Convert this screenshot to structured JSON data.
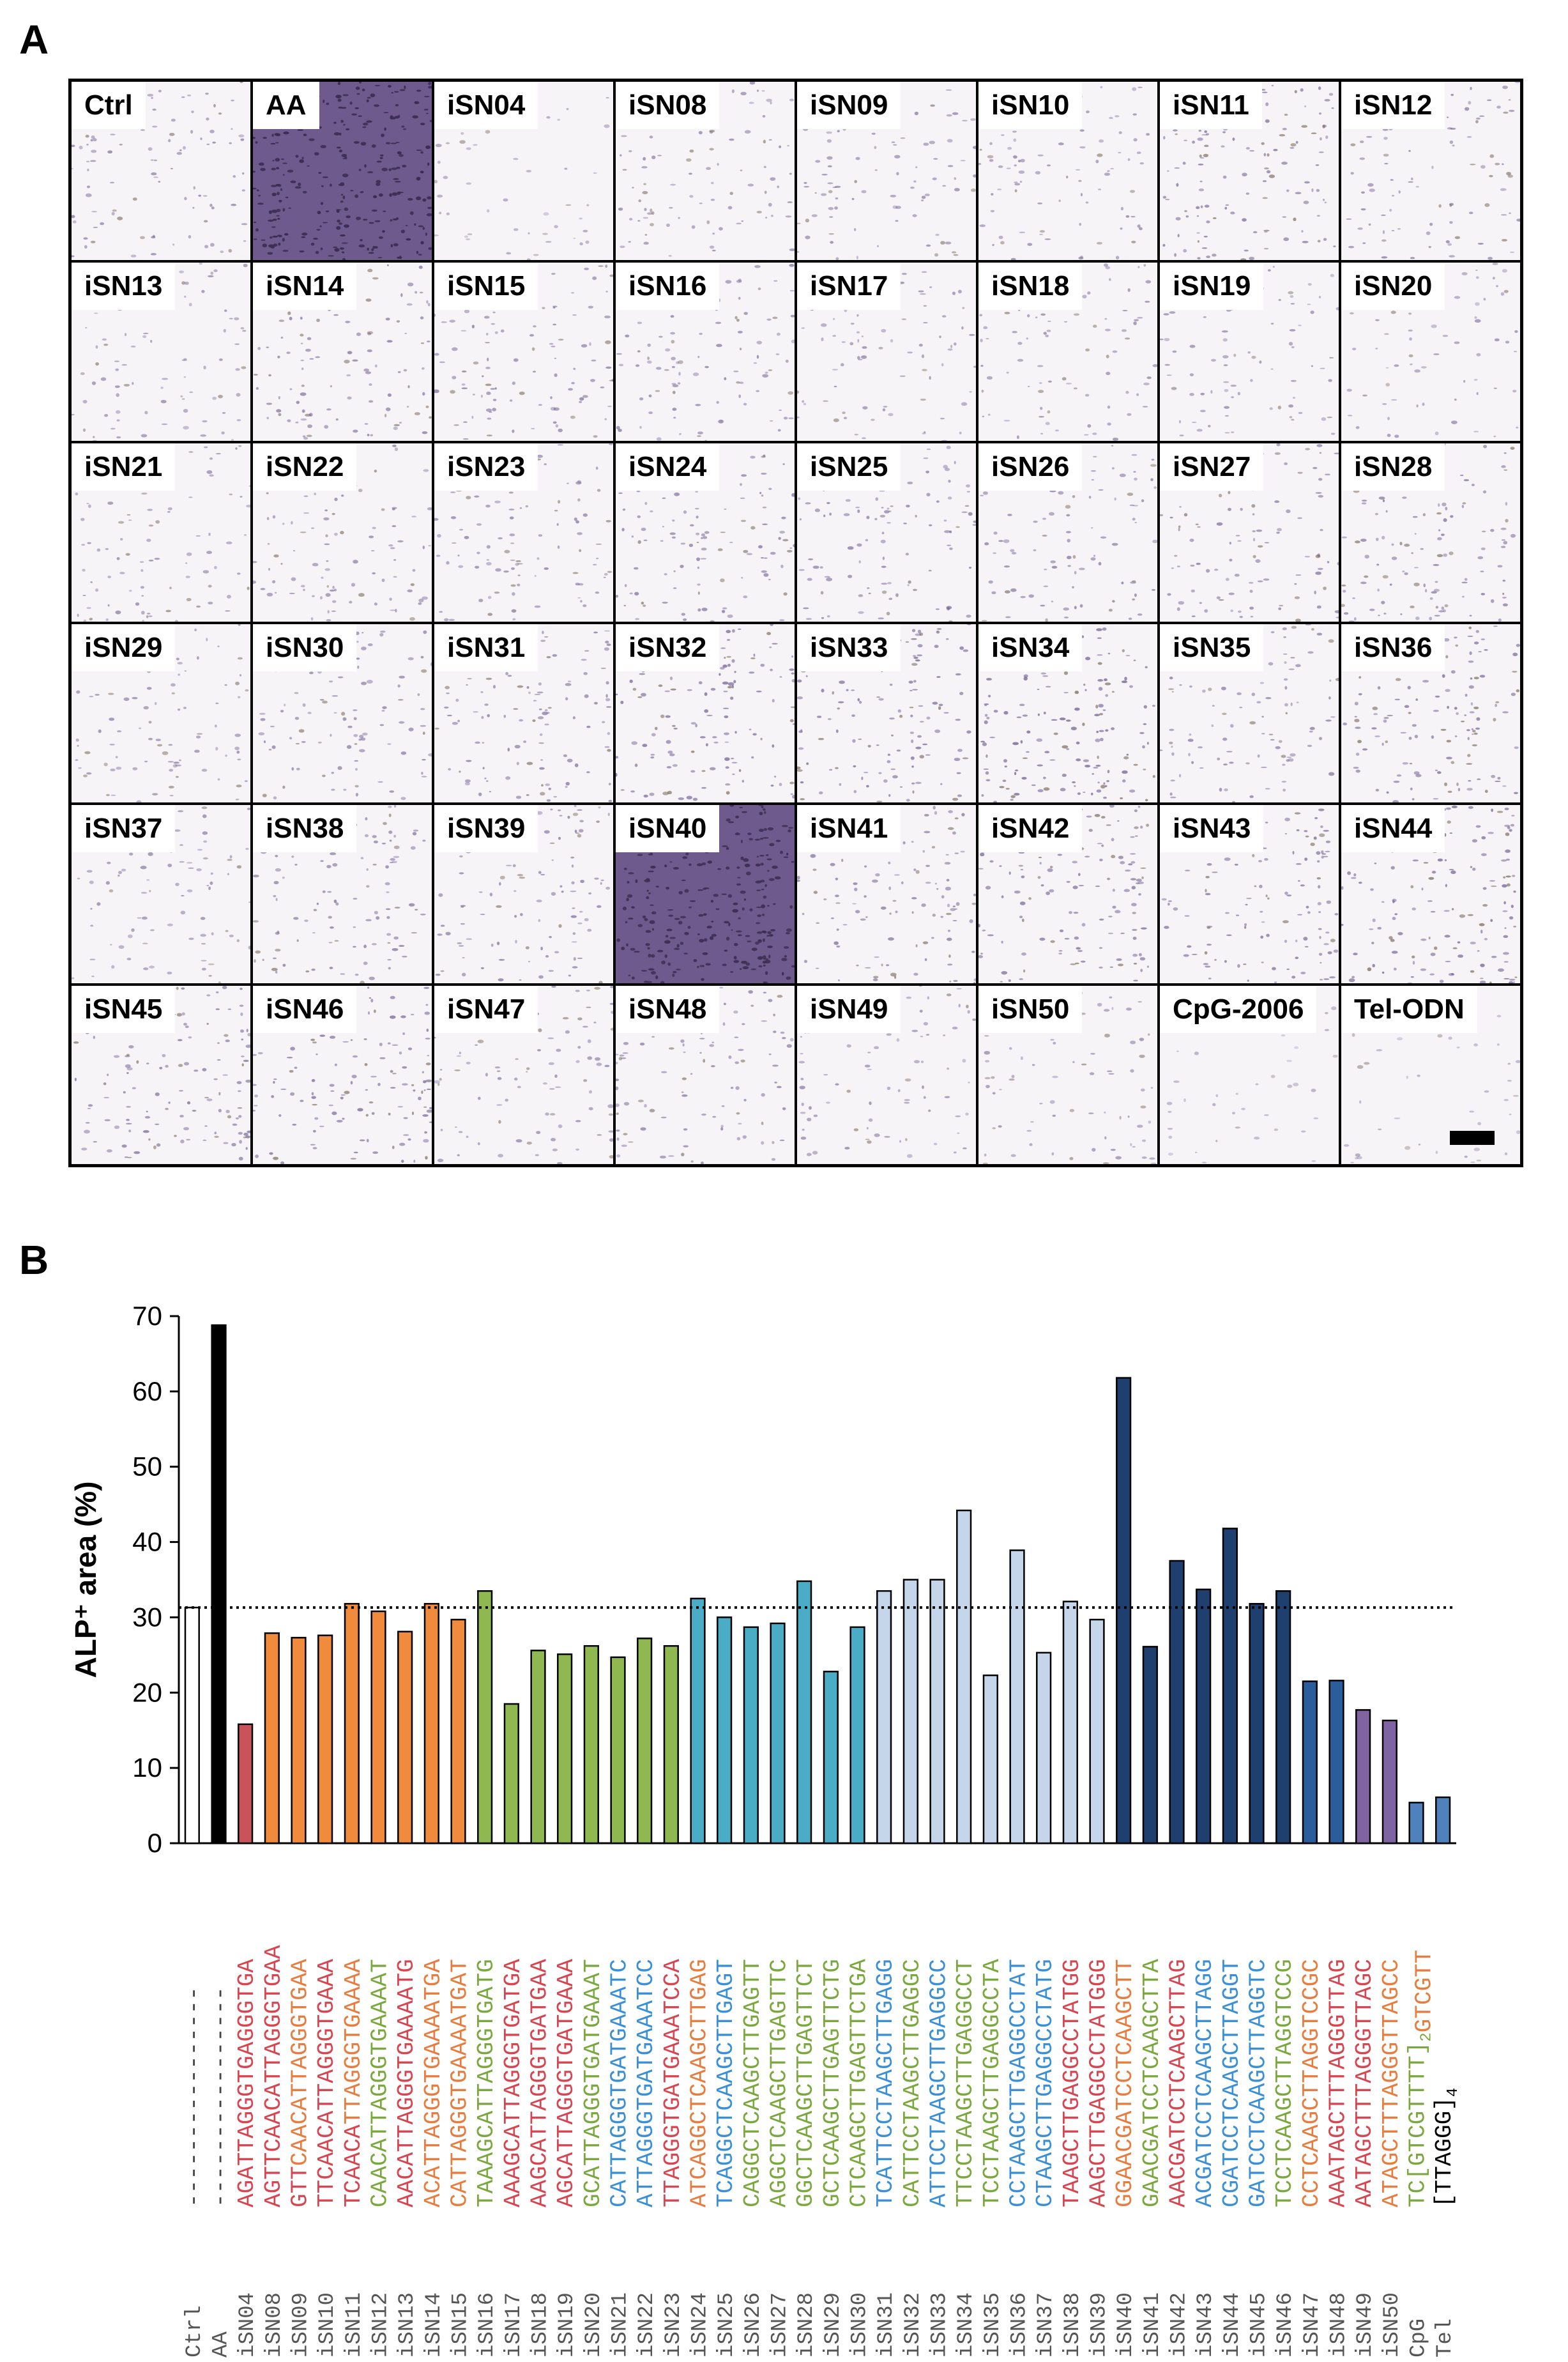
{
  "panel_a": {
    "letter": "A",
    "tiles": [
      {
        "label": "Ctrl",
        "stain": 0.25
      },
      {
        "label": "AA",
        "stain": 0.95
      },
      {
        "label": "iSN04",
        "stain": 0.05
      },
      {
        "label": "iSN08",
        "stain": 0.22
      },
      {
        "label": "iSN09",
        "stain": 0.22
      },
      {
        "label": "iSN10",
        "stain": 0.22
      },
      {
        "label": "iSN11",
        "stain": 0.35
      },
      {
        "label": "iSN12",
        "stain": 0.25
      },
      {
        "label": "iSN13",
        "stain": 0.2
      },
      {
        "label": "iSN14",
        "stain": 0.28
      },
      {
        "label": "iSN15",
        "stain": 0.28
      },
      {
        "label": "iSN16",
        "stain": 0.25
      },
      {
        "label": "iSN17",
        "stain": 0.18
      },
      {
        "label": "iSN18",
        "stain": 0.2
      },
      {
        "label": "iSN19",
        "stain": 0.2
      },
      {
        "label": "iSN20",
        "stain": 0.15
      },
      {
        "label": "iSN21",
        "stain": 0.2
      },
      {
        "label": "iSN22",
        "stain": 0.25
      },
      {
        "label": "iSN23",
        "stain": 0.25
      },
      {
        "label": "iSN24",
        "stain": 0.3
      },
      {
        "label": "iSN25",
        "stain": 0.28
      },
      {
        "label": "iSN26",
        "stain": 0.28
      },
      {
        "label": "iSN27",
        "stain": 0.3
      },
      {
        "label": "iSN28",
        "stain": 0.32
      },
      {
        "label": "iSN29",
        "stain": 0.22
      },
      {
        "label": "iSN30",
        "stain": 0.25
      },
      {
        "label": "iSN31",
        "stain": 0.3
      },
      {
        "label": "iSN32",
        "stain": 0.4
      },
      {
        "label": "iSN33",
        "stain": 0.4
      },
      {
        "label": "iSN34",
        "stain": 0.45
      },
      {
        "label": "iSN35",
        "stain": 0.25
      },
      {
        "label": "iSN36",
        "stain": 0.38
      },
      {
        "label": "iSN37",
        "stain": 0.2
      },
      {
        "label": "iSN38",
        "stain": 0.3
      },
      {
        "label": "iSN39",
        "stain": 0.28
      },
      {
        "label": "iSN40",
        "stain": 0.85
      },
      {
        "label": "iSN41",
        "stain": 0.3
      },
      {
        "label": "iSN42",
        "stain": 0.38
      },
      {
        "label": "iSN43",
        "stain": 0.35
      },
      {
        "label": "iSN44",
        "stain": 0.42
      },
      {
        "label": "iSN45",
        "stain": 0.35
      },
      {
        "label": "iSN46",
        "stain": 0.38
      },
      {
        "label": "iSN47",
        "stain": 0.22
      },
      {
        "label": "iSN48",
        "stain": 0.25
      },
      {
        "label": "iSN49",
        "stain": 0.2
      },
      {
        "label": "iSN50",
        "stain": 0.2
      },
      {
        "label": "CpG-2006",
        "stain": 0.0
      },
      {
        "label": "Tel-ODN",
        "stain": 0.04
      }
    ]
  },
  "panel_b": {
    "letter": "B"
  },
  "chart_data": {
    "type": "bar",
    "ylabel": "ALP⁺ area (%)",
    "ylim": [
      0,
      70
    ],
    "yticks": [
      0,
      10,
      20,
      30,
      40,
      50,
      60,
      70
    ],
    "reference_line": 31.3,
    "categories": [
      "Ctrl",
      "AA",
      "iSN04",
      "iSN08",
      "iSN09",
      "iSN10",
      "iSN11",
      "iSN12",
      "iSN13",
      "iSN14",
      "iSN15",
      "iSN16",
      "iSN17",
      "iSN18",
      "iSN19",
      "iSN20",
      "iSN21",
      "iSN22",
      "iSN23",
      "iSN24",
      "iSN25",
      "iSN26",
      "iSN27",
      "iSN28",
      "iSN29",
      "iSN30",
      "iSN31",
      "iSN32",
      "iSN33",
      "iSN34",
      "iSN35",
      "iSN36",
      "iSN37",
      "iSN38",
      "iSN39",
      "iSN40",
      "iSN41",
      "iSN42",
      "iSN43",
      "iSN44",
      "iSN45",
      "iSN46",
      "iSN47",
      "iSN48",
      "iSN49",
      "iSN50",
      "CpG",
      "Tel"
    ],
    "values": [
      31.3,
      68.8,
      15.8,
      27.9,
      27.3,
      27.6,
      31.8,
      30.8,
      28.1,
      31.8,
      29.7,
      33.5,
      18.5,
      25.6,
      25.1,
      26.2,
      24.7,
      27.2,
      26.2,
      32.5,
      30.0,
      28.7,
      29.2,
      34.8,
      22.8,
      28.7,
      33.5,
      35.0,
      35.0,
      44.2,
      22.3,
      38.9,
      25.3,
      32.1,
      29.7,
      61.8,
      26.1,
      37.5,
      33.7,
      41.8,
      31.8,
      33.5,
      21.5,
      21.6,
      17.7,
      16.3,
      5.4,
      6.1
    ],
    "bar_colors": [
      "#ffffff",
      "#000000",
      "#c9535b",
      "#f08a3c",
      "#f08a3c",
      "#f08a3c",
      "#f08a3c",
      "#f08a3c",
      "#f08a3c",
      "#f08a3c",
      "#f08a3c",
      "#8fb850",
      "#8fb850",
      "#8fb850",
      "#8fb850",
      "#8fb850",
      "#8fb850",
      "#8fb850",
      "#8fb850",
      "#4bacc6",
      "#4bacc6",
      "#4bacc6",
      "#4bacc6",
      "#4bacc6",
      "#4bacc6",
      "#4bacc6",
      "#c5d5ea",
      "#c5d5ea",
      "#c5d5ea",
      "#c5d5ea",
      "#c5d5ea",
      "#c5d5ea",
      "#c5d5ea",
      "#c5d5ea",
      "#c5d5ea",
      "#1f3f6e",
      "#1f3f6e",
      "#1f3f6e",
      "#1f3f6e",
      "#1f3f6e",
      "#1f3f6e",
      "#1f3f6e",
      "#2a5d9a",
      "#2a5d9a",
      "#8064a2",
      "#8064a2",
      "#4f81bd",
      "#4f81bd"
    ],
    "sequences": [
      "----------------",
      "----------------",
      [
        [
          "AGATTAGGGTGAGGGTGA",
          "#d64550"
        ]
      ],
      [
        [
          "AGTTCAACATTAGGGTGAA",
          "#d64550"
        ]
      ],
      [
        [
          "GTT",
          "#d64550"
        ],
        [
          "CAACATTAGGGTGAA",
          "#e87c3e"
        ]
      ],
      [
        [
          "TTCAACATTAGGGTGAAA",
          "#d64550"
        ]
      ],
      [
        [
          "TCAACA",
          "#d64550"
        ],
        [
          "TTAGGGTGAAAA",
          "#e87c3e"
        ]
      ],
      [
        [
          "CAACATTAGGGTGAAAAT",
          "#7aa83e"
        ]
      ],
      [
        [
          "AACATTAGGGTGAAAATG",
          "#d64550"
        ]
      ],
      [
        [
          "ACATTAGGGTGAAAATGA",
          "#e87c3e"
        ]
      ],
      [
        [
          "CATTAGGGTGAAAATGAT",
          "#e87c3e"
        ]
      ],
      [
        [
          "TAAAGCATTAGGGTGATG",
          "#7aa83e"
        ]
      ],
      [
        [
          "AAAGCATTAGGGTGATGA",
          "#d64550"
        ]
      ],
      [
        [
          "AAGCATTAGGGTGATGAA",
          "#d64550"
        ]
      ],
      [
        [
          "AGCATTAGGGTGATGAAA",
          "#d64550"
        ]
      ],
      [
        [
          "GCATTAGGGTGATGAAAT",
          "#7aa83e"
        ]
      ],
      [
        [
          "CATTAGGGTGATGAAATC",
          "#3a8fd6"
        ]
      ],
      [
        [
          "ATTAGGGTGATGAAATCC",
          "#3a8fd6"
        ]
      ],
      [
        [
          "TTAGGGTGATGAAATCCA",
          "#d64550"
        ]
      ],
      [
        [
          "ATCAGGCTCAAGCTTGAG",
          "#e87c3e"
        ]
      ],
      [
        [
          "TCAGGCTCAAGCTTGAGT",
          "#3a8fd6"
        ]
      ],
      [
        [
          "CAGGCTCAAGCTTGAGTT",
          "#7aa83e"
        ]
      ],
      [
        [
          "AGGCTCAAGCTTGAGTTC",
          "#7aa83e"
        ]
      ],
      [
        [
          "GGCTCAAGCTTGAGTTCT",
          "#7aa83e"
        ]
      ],
      [
        [
          "GCTCAAGCTTGAGTTCTG",
          "#7aa83e"
        ]
      ],
      [
        [
          "CTCAAGCTTGAGTTCTGA",
          "#7aa83e"
        ]
      ],
      [
        [
          "TCATTCCTAAGCTTGAGG",
          "#3a8fd6"
        ]
      ],
      [
        [
          "CATTCCTAAGCTTGAGGC",
          "#7aa83e"
        ]
      ],
      [
        [
          "ATTCCTAAGCTTGAGGCC",
          "#3a8fd6"
        ]
      ],
      [
        [
          "TTCCTAAGCTTGAGGCCT",
          "#7aa83e"
        ]
      ],
      [
        [
          "TCCTAAGCTTGAGGCCTA",
          "#7aa83e"
        ]
      ],
      [
        [
          "CCTAAGCTTGAGGCCTAT",
          "#3a8fd6"
        ]
      ],
      [
        [
          "CTAAGCTTGAGGCCTATG",
          "#3a8fd6"
        ]
      ],
      [
        [
          "TAAGCTTGAGGCCTATGG",
          "#d64550"
        ]
      ],
      [
        [
          "AAGCTTGAGGCCTATGGG",
          "#d64550"
        ]
      ],
      [
        [
          "GGAACGATCCTCAAGCTT",
          "#e87c3e"
        ]
      ],
      [
        [
          "GAACGATCCTCAAGCTTA",
          "#7aa83e"
        ]
      ],
      [
        [
          "AACGATCCTCAAGCTTAG",
          "#d64550"
        ]
      ],
      [
        [
          "ACGATCCTCAAGCTTAGG",
          "#3a8fd6"
        ]
      ],
      [
        [
          "CGATCCTCAAGCTTAGGT",
          "#3a8fd6"
        ]
      ],
      [
        [
          "GATCCTCAAGCTTAGGTC",
          "#3a8fd6"
        ]
      ],
      [
        [
          "TCCTCAAGCTTAGGTCCG",
          "#7aa83e"
        ]
      ],
      [
        [
          "CCTCAAGCTTAGGTCCGC",
          "#e87c3e"
        ]
      ],
      [
        [
          "AAATAGCTTTAGGGTTAG",
          "#d64550"
        ]
      ],
      [
        [
          "AATAGCTTTAGGGTTAGC",
          "#d64550"
        ]
      ],
      [
        [
          "ATAGCTTTAGGGTTAGCC",
          "#e87c3e"
        ]
      ],
      [
        [
          "TC[GTCGTTTT]",
          "#7aa83e"
        ],
        [
          "2",
          "#7aa83e"
        ],
        [
          "GTCGTT",
          "#e87c3e"
        ]
      ],
      [
        [
          "[TTAGGG]",
          "#000000"
        ],
        [
          "4",
          "#000000"
        ]
      ]
    ]
  }
}
